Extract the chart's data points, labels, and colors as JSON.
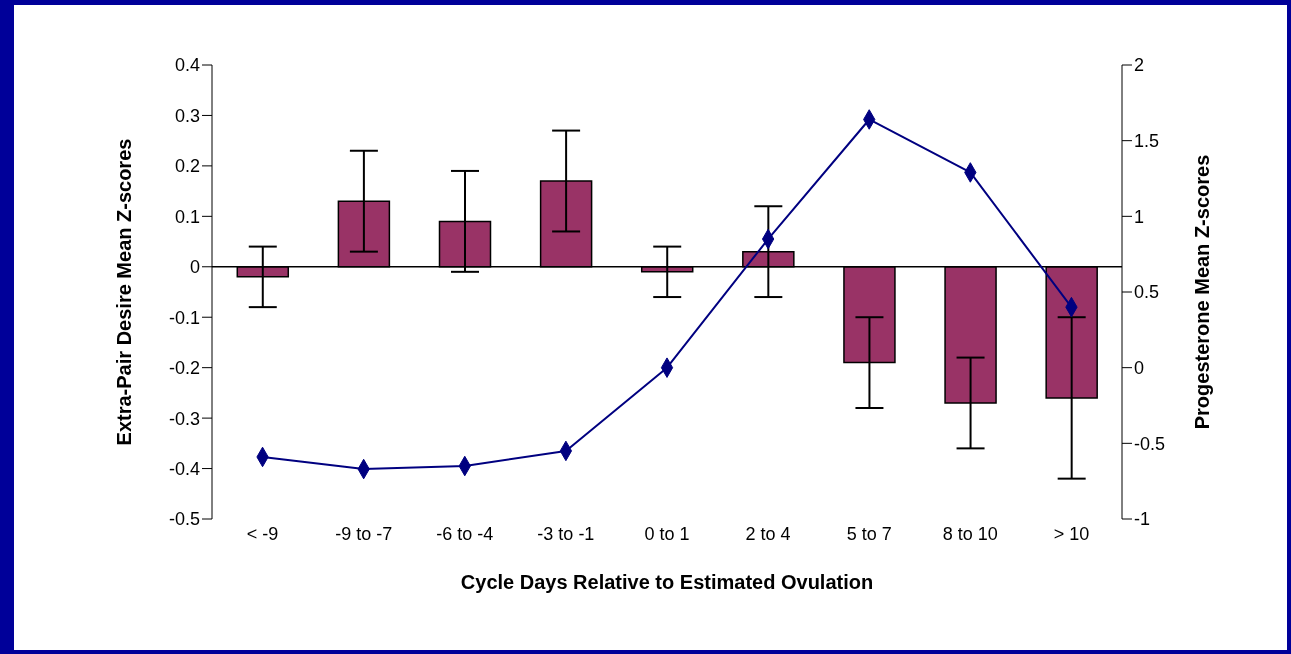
{
  "chart_data": {
    "type": "bar",
    "xlabel": "Cycle Days Relative to Estimated Ovulation",
    "ylabel": "Extra-Pair Desire Mean Z-scores",
    "y2label": "Progesterone Mean Z-scores",
    "categories": [
      "< -9",
      "-9 to -7",
      "-6 to -4",
      "-3 to -1",
      "0 to 1",
      "2 to 4",
      "5 to 7",
      "8 to 10",
      "> 10"
    ],
    "series": [
      {
        "color": "#993366",
        "values": [
          -0.02,
          0.13,
          0.09,
          0.17,
          -0.01,
          0.03,
          -0.19,
          -0.27,
          -0.26
        ],
        "errors": [
          [
            -0.08,
            0.04
          ],
          [
            0.03,
            0.23
          ],
          [
            -0.01,
            0.19
          ],
          [
            0.07,
            0.27
          ],
          [
            -0.06,
            0.04
          ],
          [
            -0.06,
            0.12
          ],
          [
            -0.28,
            -0.1
          ],
          [
            -0.36,
            -0.18
          ],
          [
            -0.42,
            -0.1
          ]
        ]
      },
      {
        "type": "line",
        "axis": "y2",
        "color": "#000080",
        "marker": "diamond",
        "values": [
          -0.59,
          -0.67,
          -0.65,
          -0.55,
          0,
          0.85,
          1.64,
          1.29,
          0.4
        ]
      }
    ],
    "ylim": [
      -0.5,
      0.4
    ],
    "yticks": [
      -0.5,
      -0.4,
      -0.3,
      -0.2,
      -0.1,
      0,
      0.1,
      0.2,
      0.3,
      0.4
    ],
    "y2lim": [
      -1,
      2
    ],
    "y2ticks": [
      -1,
      -0.5,
      0,
      0.5,
      1,
      1.5,
      2
    ],
    "ref_lines": [
      {
        "axis": "y",
        "value": 0,
        "color": "#000000"
      }
    ],
    "grid": false,
    "legend": false
  }
}
